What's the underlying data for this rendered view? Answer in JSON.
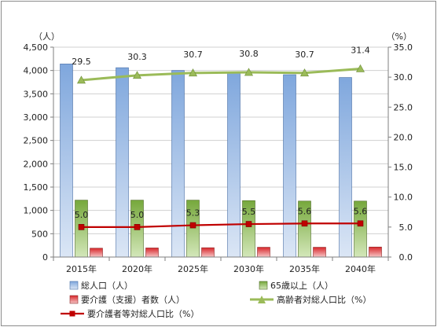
{
  "chart_data": {
    "type": "bar",
    "categories": [
      "2015年",
      "2020年",
      "2025年",
      "2030年",
      "2035年",
      "2040年"
    ],
    "y_left": {
      "unit": "（人）",
      "min": 0,
      "max": 4500,
      "step": 500,
      "tick_labels": [
        "0",
        "500",
        "1,000",
        "1,500",
        "2,000",
        "2,500",
        "3,000",
        "3,500",
        "4,000",
        "4,500"
      ]
    },
    "y_right": {
      "unit": "（%）",
      "min": 0,
      "max": 35,
      "step": 5,
      "tick_labels": [
        "0.0",
        "5.0",
        "10.0",
        "15.0",
        "20.0",
        "25.0",
        "30.0",
        "35.0"
      ]
    },
    "grid": true,
    "series": [
      {
        "name": "総人口（人）",
        "kind": "bar",
        "axis": "left",
        "color": "#8eb4e3",
        "values": [
          4140,
          4060,
          4000,
          3960,
          3910,
          3850
        ]
      },
      {
        "name": "65歳以上（人）",
        "kind": "bar",
        "axis": "left",
        "color": "#77933c",
        "values": [
          1220,
          1220,
          1220,
          1210,
          1200,
          1200
        ]
      },
      {
        "name": "要介護（支援）者数（人）",
        "kind": "bar",
        "axis": "left",
        "color": "#c0504d",
        "values": [
          190,
          195,
          200,
          210,
          210,
          215
        ]
      },
      {
        "name": "高齢者対総人口比（%）",
        "kind": "line",
        "axis": "right",
        "color": "#9bbb59",
        "values": [
          29.5,
          30.3,
          30.7,
          30.8,
          30.7,
          31.4
        ],
        "labels": [
          "29.5",
          "30.3",
          "30.7",
          "30.8",
          "30.7",
          "31.4"
        ]
      },
      {
        "name": "要介護者等対総人口比（%）",
        "kind": "line",
        "axis": "right",
        "color": "#c00000",
        "values": [
          5.0,
          5.0,
          5.3,
          5.5,
          5.6,
          5.6
        ],
        "labels": [
          "5.0",
          "5.0",
          "5.3",
          "5.5",
          "5.6",
          "5.6"
        ]
      }
    ],
    "legend_placement": "bottom"
  }
}
